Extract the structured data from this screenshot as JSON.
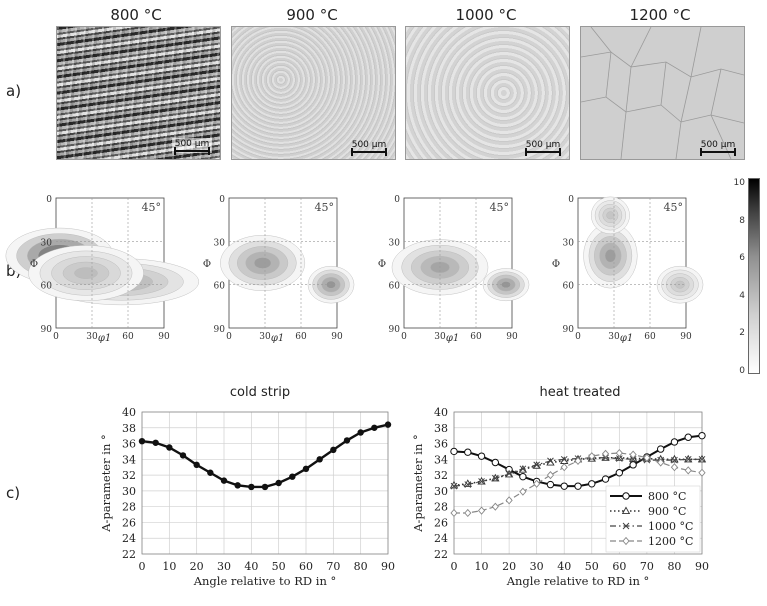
{
  "figure": {
    "row_labels": [
      "a)",
      "b)",
      "c)"
    ],
    "micrographs": [
      {
        "temperature": "800 °C",
        "scale": "500 µm"
      },
      {
        "temperature": "900 °C",
        "scale": "500 µm"
      },
      {
        "temperature": "1000 °C",
        "scale": "500 µm"
      },
      {
        "temperature": "1200 °C",
        "scale": "500 µm"
      }
    ],
    "odf": {
      "section_label": "45°",
      "y_axis_label": "Φ",
      "x_axis_label": "φ1",
      "ticks": [
        "0",
        "30",
        "60",
        "90"
      ],
      "colorbar_ticks": [
        "0",
        "2",
        "4",
        "6",
        "8",
        "10"
      ]
    }
  },
  "chart_data": [
    {
      "type": "line",
      "title": "cold strip",
      "xlabel": "Angle relative to RD in °",
      "ylabel": "A-parameter in °",
      "xlim": [
        0,
        90
      ],
      "ylim": [
        22,
        40
      ],
      "xticks": [
        0,
        10,
        20,
        30,
        40,
        50,
        60,
        70,
        80,
        90
      ],
      "yticks": [
        22,
        24,
        26,
        28,
        30,
        32,
        34,
        36,
        38,
        40
      ],
      "grid": true,
      "series": [
        {
          "name": "cold strip",
          "x": [
            0,
            5,
            10,
            15,
            20,
            25,
            30,
            35,
            40,
            45,
            50,
            55,
            60,
            65,
            70,
            75,
            80,
            85,
            90
          ],
          "values": [
            36.3,
            36.1,
            35.5,
            34.5,
            33.3,
            32.3,
            31.3,
            30.7,
            30.5,
            30.5,
            31.0,
            31.8,
            32.8,
            34.0,
            35.2,
            36.4,
            37.4,
            38.0,
            38.4
          ]
        }
      ]
    },
    {
      "type": "line",
      "title": "heat treated",
      "xlabel": "Angle relative to RD in °",
      "ylabel": "A-parameter in °",
      "xlim": [
        0,
        90
      ],
      "ylim": [
        22,
        40
      ],
      "xticks": [
        0,
        10,
        20,
        30,
        40,
        50,
        60,
        70,
        80,
        90
      ],
      "yticks": [
        22,
        24,
        26,
        28,
        30,
        32,
        34,
        36,
        38,
        40
      ],
      "grid": true,
      "legend_position": "bottom-right",
      "series": [
        {
          "name": "800 °C",
          "x": [
            0,
            5,
            10,
            15,
            20,
            25,
            30,
            35,
            40,
            45,
            50,
            55,
            60,
            65,
            70,
            75,
            80,
            85,
            90
          ],
          "values": [
            35.0,
            34.9,
            34.4,
            33.6,
            32.7,
            31.8,
            31.2,
            30.8,
            30.6,
            30.6,
            30.9,
            31.5,
            32.3,
            33.3,
            34.3,
            35.3,
            36.2,
            36.8,
            37.0
          ]
        },
        {
          "name": "900 °C",
          "x": [
            0,
            5,
            10,
            15,
            20,
            25,
            30,
            35,
            40,
            45,
            50,
            55,
            60,
            65,
            70,
            75,
            80,
            85,
            90
          ],
          "values": [
            30.7,
            30.9,
            31.2,
            31.6,
            32.1,
            32.7,
            33.2,
            33.6,
            33.8,
            34.0,
            34.1,
            34.2,
            34.2,
            34.1,
            34.1,
            34.0,
            34.0,
            34.0,
            34.0
          ]
        },
        {
          "name": "1000 °C",
          "x": [
            0,
            5,
            10,
            15,
            20,
            25,
            30,
            35,
            40,
            45,
            50,
            55,
            60,
            65,
            70,
            75,
            80,
            85,
            90
          ],
          "values": [
            30.6,
            30.8,
            31.2,
            31.6,
            32.2,
            32.8,
            33.3,
            33.8,
            34.0,
            34.1,
            34.2,
            34.2,
            34.1,
            34.0,
            33.9,
            33.9,
            33.9,
            34.0,
            34.0
          ]
        },
        {
          "name": "1200 °C",
          "x": [
            0,
            5,
            10,
            15,
            20,
            25,
            30,
            35,
            40,
            45,
            50,
            55,
            60,
            65,
            70,
            75,
            80,
            85,
            90
          ],
          "values": [
            27.2,
            27.2,
            27.5,
            28.0,
            28.8,
            29.9,
            30.9,
            32.0,
            33.0,
            33.8,
            34.4,
            34.7,
            34.8,
            34.6,
            34.2,
            33.6,
            33.0,
            32.6,
            32.3
          ]
        }
      ]
    }
  ]
}
